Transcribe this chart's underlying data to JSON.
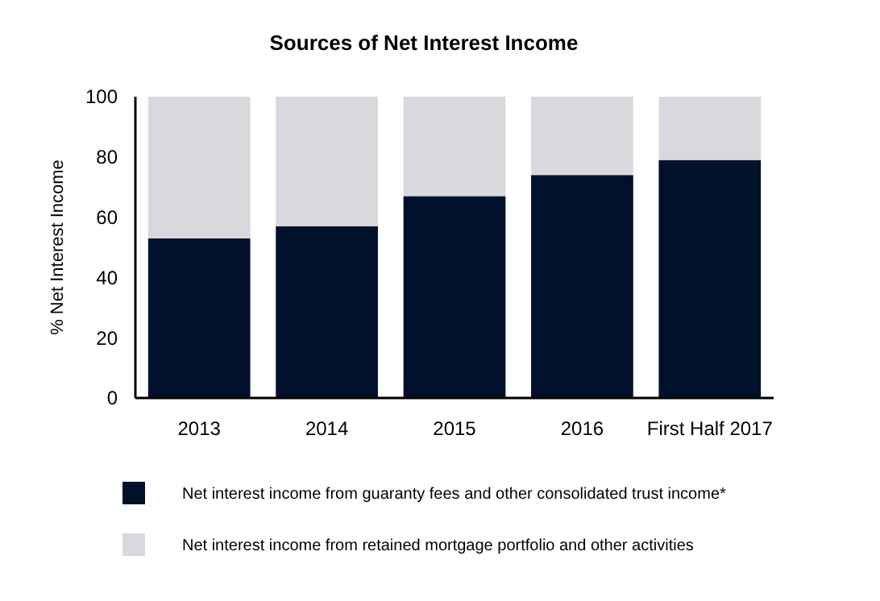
{
  "chart_data": {
    "type": "bar",
    "title": "Sources of Net Interest Income",
    "ylabel": "% Net Interest Income",
    "categories": [
      "2013",
      "2014",
      "2015",
      "2016",
      "First Half 2017"
    ],
    "series": [
      {
        "name": "Net interest income from guaranty fees and other consolidated trust income*",
        "color": "#01112b",
        "values": [
          53,
          57,
          67,
          74,
          79
        ]
      },
      {
        "name": "Net interest income from retained mortgage portfolio and other activities",
        "color": "#d9d8dd",
        "values": [
          47,
          43,
          33,
          26,
          21
        ]
      }
    ],
    "stacked": true,
    "ylim": [
      0,
      100
    ],
    "yticks": [
      0,
      20,
      40,
      60,
      80,
      100
    ],
    "grid": false,
    "legend": "bottom"
  }
}
